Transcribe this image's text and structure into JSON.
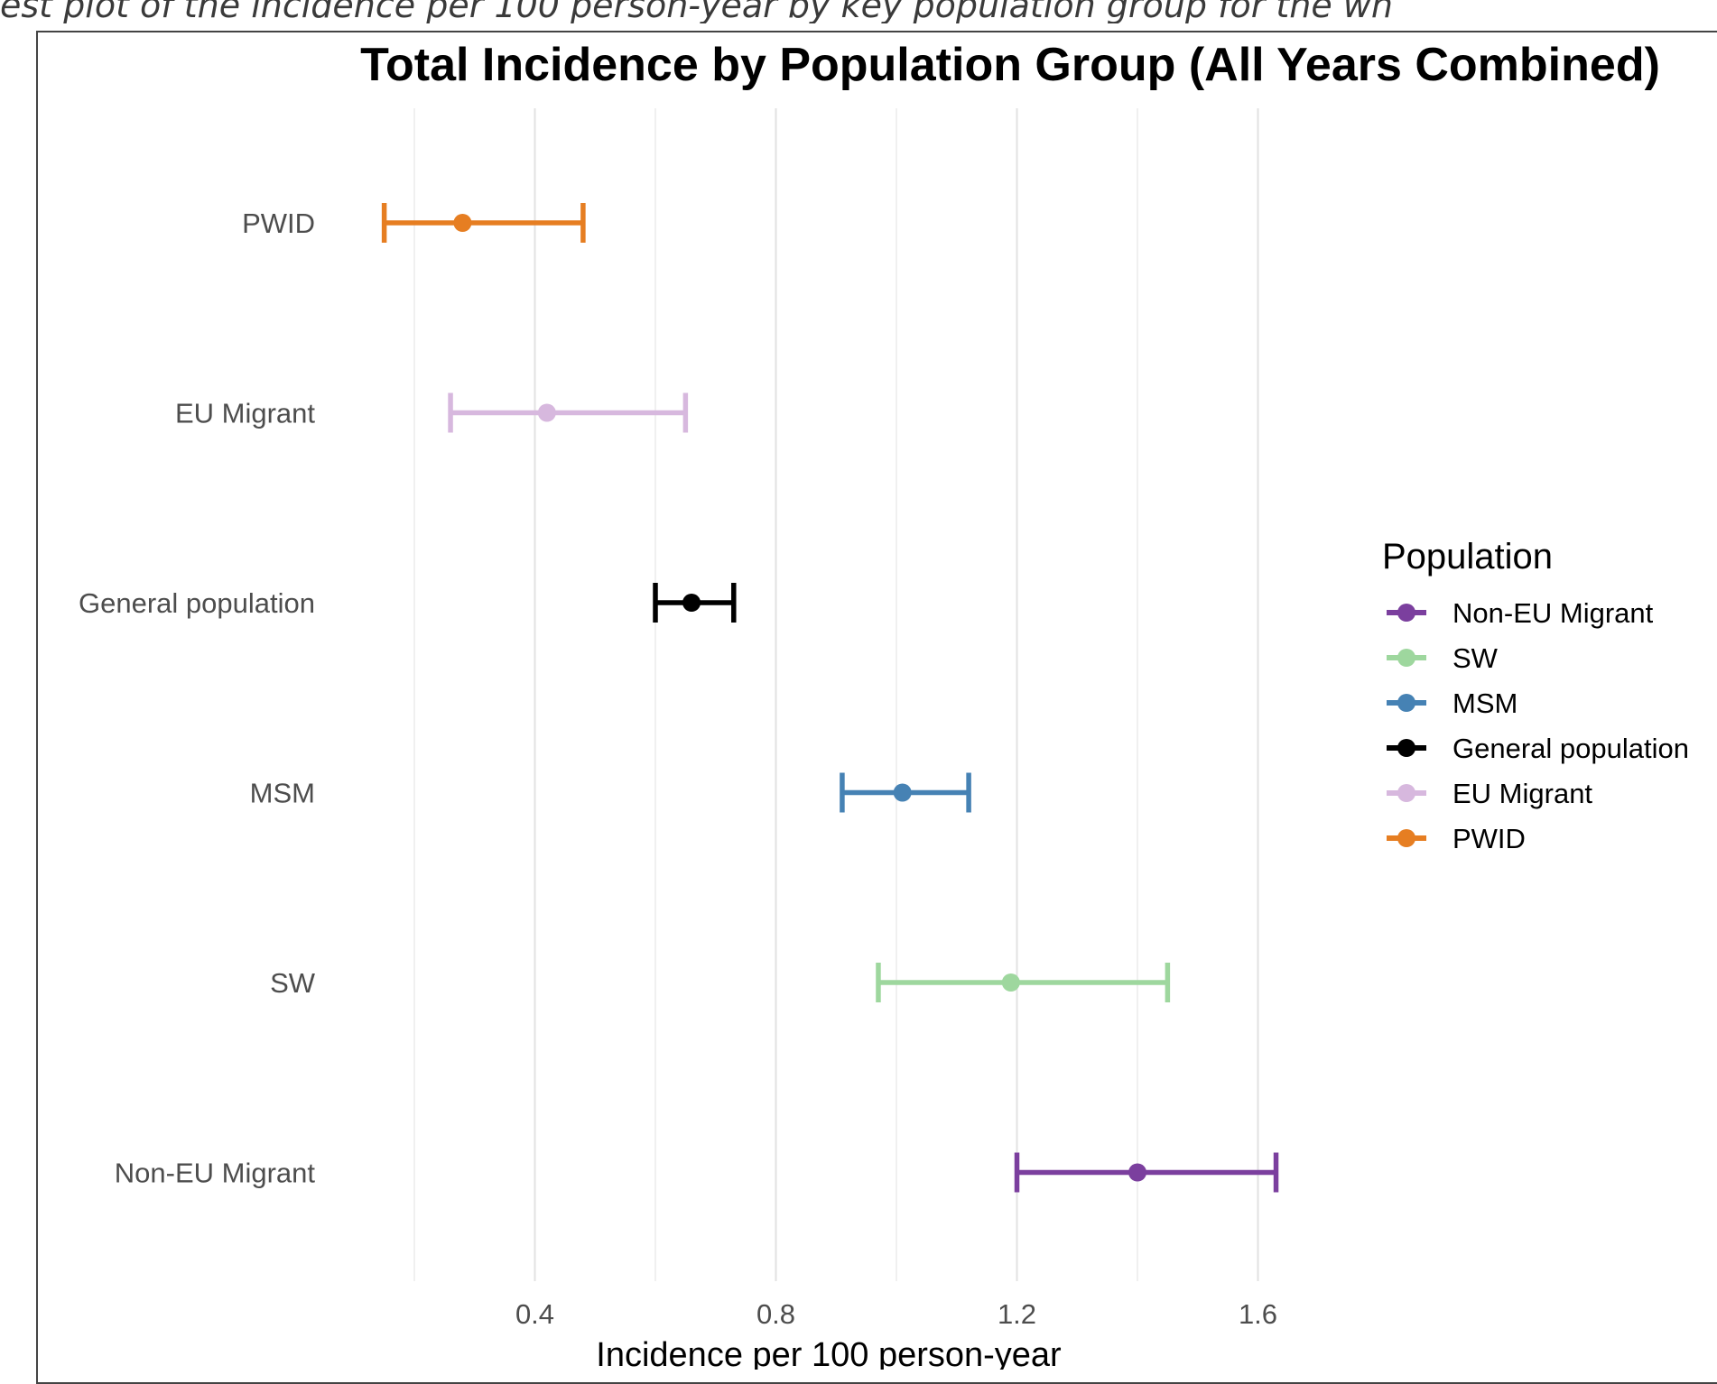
{
  "caption": "est plot of the incidence per 100 person-year by key population group for the wh",
  "chart_data": {
    "type": "errorbar",
    "title": "Total Incidence by Population Group (All Years Combined)",
    "xlabel": "Incidence per 100 person-year",
    "ylabel": "",
    "xlim": [
      0.1,
      1.75
    ],
    "xticks": [
      0.4,
      0.8,
      1.2,
      1.6
    ],
    "xtick_labels": [
      "0.4",
      "0.8",
      "1.2",
      "1.6"
    ],
    "minor_gridlines": [
      0.2,
      0.6,
      1.0,
      1.4
    ],
    "grid": true,
    "categories": [
      "PWID",
      "EU Migrant",
      "General population",
      "MSM",
      "SW",
      "Non-EU Migrant"
    ],
    "series": [
      {
        "name": "PWID",
        "value": 0.28,
        "lower": 0.15,
        "upper": 0.48,
        "color": "#E67E22"
      },
      {
        "name": "EU Migrant",
        "value": 0.42,
        "lower": 0.26,
        "upper": 0.65,
        "color": "#D7B8DE"
      },
      {
        "name": "General population",
        "value": 0.66,
        "lower": 0.6,
        "upper": 0.73,
        "color": "#000000"
      },
      {
        "name": "MSM",
        "value": 1.01,
        "lower": 0.91,
        "upper": 1.12,
        "color": "#4682B4"
      },
      {
        "name": "SW",
        "value": 1.19,
        "lower": 0.97,
        "upper": 1.45,
        "color": "#9ED79E"
      },
      {
        "name": "Non-EU Migrant",
        "value": 1.4,
        "lower": 1.2,
        "upper": 1.63,
        "color": "#7B3F9E"
      }
    ],
    "legend": {
      "title": "Population",
      "placement": "right",
      "entries": [
        "Non-EU Migrant",
        "SW",
        "MSM",
        "General population",
        "EU Migrant",
        "PWID"
      ]
    }
  }
}
